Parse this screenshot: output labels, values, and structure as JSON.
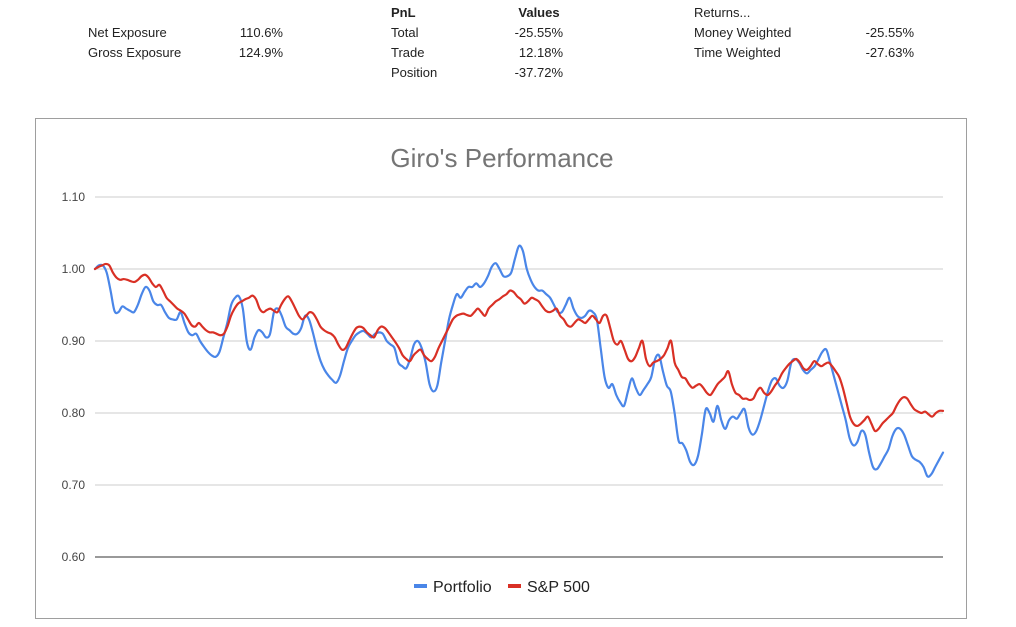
{
  "summary": {
    "exposure": [
      {
        "label": "Net Exposure",
        "value": "110.6%"
      },
      {
        "label": "Gross Exposure",
        "value": "124.9%"
      }
    ],
    "pnl_header": "PnL",
    "values_header": "Values",
    "pnl": [
      {
        "label": "Total",
        "value": "-25.55%"
      },
      {
        "label": "Trade",
        "value": "12.18%"
      },
      {
        "label": "Position",
        "value": "-37.72%"
      }
    ],
    "returns_header": "Returns...",
    "returns": [
      {
        "label": "Money Weighted",
        "value": "-25.55%"
      },
      {
        "label": "Time Weighted",
        "value": "-27.63%"
      }
    ]
  },
  "chart_data": {
    "type": "line",
    "title": "Giro's Performance",
    "xlabel": "",
    "ylabel": "",
    "ylim": [
      0.6,
      1.1
    ],
    "yticks": [
      "0.60",
      "0.70",
      "0.80",
      "0.90",
      "1.00",
      "1.10"
    ],
    "grid": true,
    "legend_position": "bottom",
    "series": [
      {
        "name": "Portfolio",
        "color": "#4a86e8",
        "values": [
          1.0,
          1.005,
          1.005,
          0.995,
          0.97,
          0.942,
          0.94,
          0.948,
          0.945,
          0.942,
          0.94,
          0.95,
          0.965,
          0.975,
          0.97,
          0.955,
          0.95,
          0.95,
          0.94,
          0.932,
          0.93,
          0.93,
          0.94,
          0.925,
          0.912,
          0.908,
          0.91,
          0.9,
          0.892,
          0.885,
          0.88,
          0.878,
          0.885,
          0.905,
          0.925,
          0.95,
          0.96,
          0.962,
          0.945,
          0.9,
          0.888,
          0.905,
          0.915,
          0.912,
          0.905,
          0.91,
          0.94,
          0.945,
          0.935,
          0.92,
          0.915,
          0.91,
          0.91,
          0.918,
          0.935,
          0.93,
          0.912,
          0.89,
          0.872,
          0.86,
          0.852,
          0.846,
          0.842,
          0.852,
          0.872,
          0.89,
          0.9,
          0.908,
          0.912,
          0.914,
          0.91,
          0.905,
          0.91,
          0.912,
          0.91,
          0.9,
          0.895,
          0.89,
          0.87,
          0.865,
          0.862,
          0.875,
          0.895,
          0.9,
          0.89,
          0.87,
          0.84,
          0.83,
          0.838,
          0.87,
          0.9,
          0.93,
          0.95,
          0.965,
          0.96,
          0.968,
          0.975,
          0.975,
          0.98,
          0.975,
          0.98,
          0.99,
          1.003,
          1.008,
          1.0,
          0.99,
          0.99,
          0.995,
          1.015,
          1.032,
          1.025,
          1.0,
          0.985,
          0.975,
          0.97,
          0.97,
          0.965,
          0.96,
          0.95,
          0.94,
          0.94,
          0.95,
          0.96,
          0.945,
          0.935,
          0.932,
          0.935,
          0.942,
          0.94,
          0.93,
          0.89,
          0.85,
          0.835,
          0.84,
          0.825,
          0.815,
          0.81,
          0.83,
          0.848,
          0.835,
          0.825,
          0.832,
          0.84,
          0.85,
          0.875,
          0.88,
          0.858,
          0.838,
          0.83,
          0.8,
          0.762,
          0.758,
          0.748,
          0.732,
          0.728,
          0.74,
          0.77,
          0.805,
          0.8,
          0.788,
          0.81,
          0.79,
          0.778,
          0.79,
          0.795,
          0.792,
          0.8,
          0.805,
          0.78,
          0.77,
          0.775,
          0.79,
          0.81,
          0.83,
          0.845,
          0.848,
          0.838,
          0.835,
          0.845,
          0.87,
          0.875,
          0.87,
          0.86,
          0.855,
          0.86,
          0.865,
          0.875,
          0.885,
          0.888,
          0.87,
          0.85,
          0.83,
          0.81,
          0.79,
          0.765,
          0.755,
          0.76,
          0.775,
          0.77,
          0.745,
          0.725,
          0.722,
          0.73,
          0.74,
          0.75,
          0.768,
          0.778,
          0.778,
          0.77,
          0.755,
          0.74,
          0.735,
          0.732,
          0.725,
          0.712,
          0.715,
          0.725,
          0.735,
          0.745
        ]
      },
      {
        "name": "S&P 500",
        "color": "#d93025",
        "values": [
          1.0,
          1.003,
          1.005,
          1.007,
          1.005,
          0.995,
          0.988,
          0.985,
          0.986,
          0.985,
          0.983,
          0.982,
          0.985,
          0.99,
          0.992,
          0.988,
          0.98,
          0.975,
          0.978,
          0.97,
          0.96,
          0.955,
          0.95,
          0.945,
          0.942,
          0.938,
          0.93,
          0.922,
          0.92,
          0.925,
          0.92,
          0.915,
          0.912,
          0.912,
          0.91,
          0.908,
          0.91,
          0.92,
          0.935,
          0.945,
          0.952,
          0.955,
          0.958,
          0.96,
          0.963,
          0.958,
          0.945,
          0.94,
          0.943,
          0.945,
          0.942,
          0.94,
          0.95,
          0.958,
          0.962,
          0.955,
          0.945,
          0.935,
          0.93,
          0.935,
          0.94,
          0.938,
          0.93,
          0.92,
          0.915,
          0.912,
          0.91,
          0.905,
          0.895,
          0.888,
          0.89,
          0.9,
          0.91,
          0.918,
          0.92,
          0.918,
          0.912,
          0.908,
          0.905,
          0.915,
          0.92,
          0.918,
          0.912,
          0.905,
          0.898,
          0.89,
          0.88,
          0.875,
          0.872,
          0.88,
          0.885,
          0.888,
          0.88,
          0.875,
          0.872,
          0.878,
          0.89,
          0.9,
          0.91,
          0.92,
          0.93,
          0.935,
          0.937,
          0.938,
          0.936,
          0.935,
          0.94,
          0.945,
          0.94,
          0.935,
          0.945,
          0.95,
          0.955,
          0.958,
          0.962,
          0.965,
          0.97,
          0.968,
          0.962,
          0.958,
          0.952,
          0.955,
          0.96,
          0.958,
          0.955,
          0.948,
          0.942,
          0.94,
          0.942,
          0.945,
          0.935,
          0.93,
          0.922,
          0.92,
          0.925,
          0.93,
          0.928,
          0.925,
          0.93,
          0.935,
          0.93,
          0.925,
          0.935,
          0.935,
          0.918,
          0.9,
          0.895,
          0.9,
          0.888,
          0.875,
          0.872,
          0.878,
          0.89,
          0.9,
          0.875,
          0.865,
          0.87,
          0.872,
          0.875,
          0.88,
          0.89,
          0.9,
          0.87,
          0.86,
          0.85,
          0.848,
          0.84,
          0.835,
          0.838,
          0.84,
          0.835,
          0.828,
          0.825,
          0.832,
          0.84,
          0.845,
          0.85,
          0.858,
          0.84,
          0.828,
          0.825,
          0.82,
          0.82,
          0.818,
          0.82,
          0.83,
          0.835,
          0.828,
          0.825,
          0.83,
          0.838,
          0.845,
          0.855,
          0.862,
          0.868,
          0.872,
          0.875,
          0.87,
          0.862,
          0.86,
          0.865,
          0.872,
          0.868,
          0.865,
          0.868,
          0.87,
          0.865,
          0.858,
          0.85,
          0.835,
          0.815,
          0.795,
          0.785,
          0.782,
          0.785,
          0.79,
          0.795,
          0.785,
          0.775,
          0.778,
          0.785,
          0.79,
          0.795,
          0.8,
          0.81,
          0.818,
          0.822,
          0.82,
          0.812,
          0.805,
          0.802,
          0.8,
          0.802,
          0.798,
          0.795,
          0.8,
          0.803,
          0.803
        ]
      }
    ]
  }
}
